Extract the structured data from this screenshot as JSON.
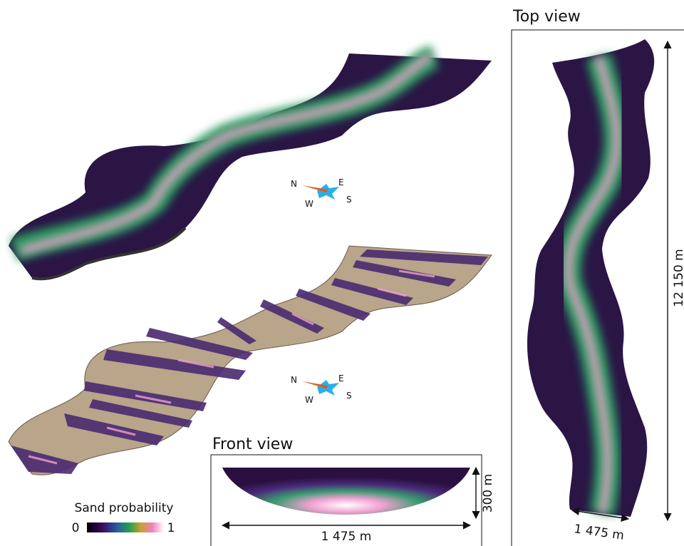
{
  "top_view": {
    "title": "Top view",
    "length_label": "12 150 m",
    "width_label": "1 475 m"
  },
  "front_view": {
    "title": "Front view",
    "height_label": "300 m",
    "width_label": "1 475 m"
  },
  "colorbar": {
    "title": "Sand probability",
    "min_label": "0",
    "max_label": "1"
  },
  "compasses": [
    {
      "n": "N",
      "e": "E",
      "w": "W",
      "s": "S"
    },
    {
      "n": "N",
      "e": "E",
      "w": "W",
      "s": "S"
    }
  ]
}
